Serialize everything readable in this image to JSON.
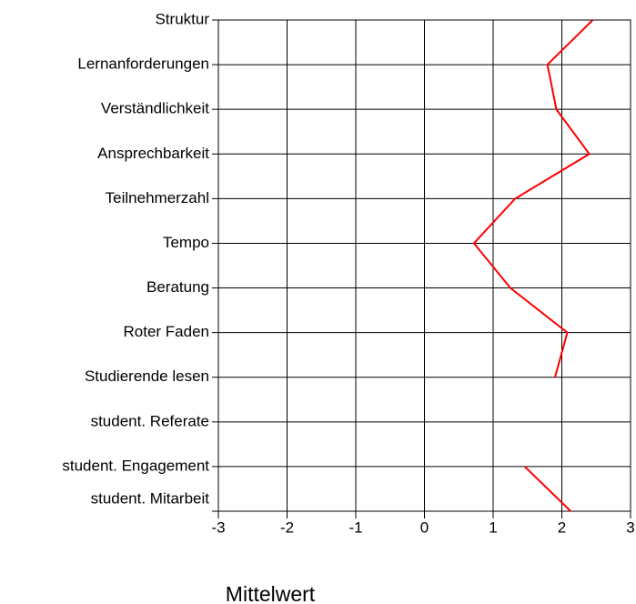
{
  "chart_data": {
    "type": "line",
    "orientation": "horizontal",
    "categories": [
      "Struktur",
      "Lernanforderungen",
      "Verständlichkeit",
      "Ansprechbarkeit",
      "Teilnehmerzahl",
      "Tempo",
      "Beratung",
      "Roter Faden",
      "Studierende lesen",
      "student. Referate",
      "student. Engagement",
      "student. Mitarbeit"
    ],
    "series": [
      {
        "color": "#ff0000",
        "values": [
          2.45,
          1.79,
          1.92,
          2.4,
          1.32,
          0.72,
          1.25,
          2.08,
          1.9,
          null,
          1.46,
          2.13
        ]
      }
    ],
    "xlabel": "Mittelwert",
    "xlim": [
      -3,
      3
    ],
    "xticks": [
      -3,
      -2,
      -1,
      0,
      1,
      2,
      3
    ],
    "grid": true
  }
}
